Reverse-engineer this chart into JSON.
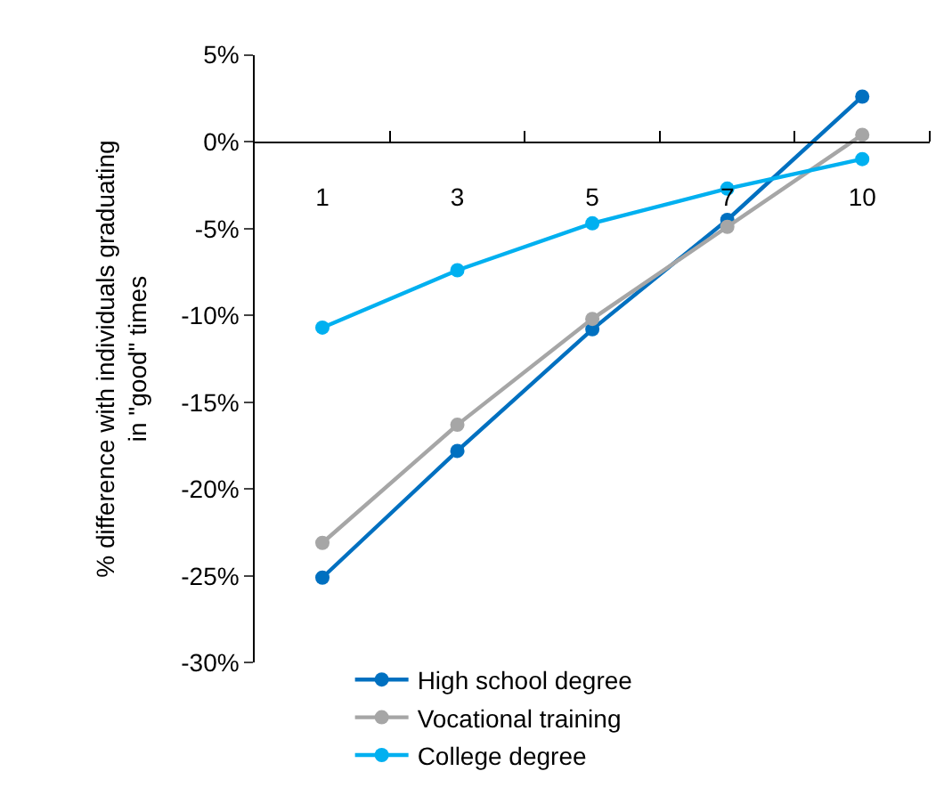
{
  "chart_data": {
    "type": "line",
    "ylabel": "% difference with individuals graduating in \"good\" times",
    "categories": [
      "1",
      "3",
      "5",
      "7",
      "10"
    ],
    "series": [
      {
        "name": "High school degree",
        "color": "#0070c0",
        "values": [
          -25.1,
          -17.8,
          -10.8,
          -4.5,
          2.6
        ]
      },
      {
        "name": "Vocational training",
        "color": "#a6a6a6",
        "values": [
          -23.1,
          -16.3,
          -10.2,
          -4.9,
          0.4
        ]
      },
      {
        "name": "College degree",
        "color": "#00b0f0",
        "values": [
          -10.7,
          -7.4,
          -4.7,
          -2.7,
          -1.0
        ]
      }
    ],
    "ylim": [
      -30,
      5
    ],
    "yticks": [
      {
        "value": -30,
        "label": "-30%"
      },
      {
        "value": -25,
        "label": "-25%"
      },
      {
        "value": -20,
        "label": "-20%"
      },
      {
        "value": -15,
        "label": "-15%"
      },
      {
        "value": -10,
        "label": "-10%"
      },
      {
        "value": -5,
        "label": "-5%"
      },
      {
        "value": 0,
        "label": "0%"
      },
      {
        "value": 5,
        "label": "5%"
      }
    ],
    "marker": "circle",
    "line_style": "solid",
    "legend": "bottom"
  }
}
